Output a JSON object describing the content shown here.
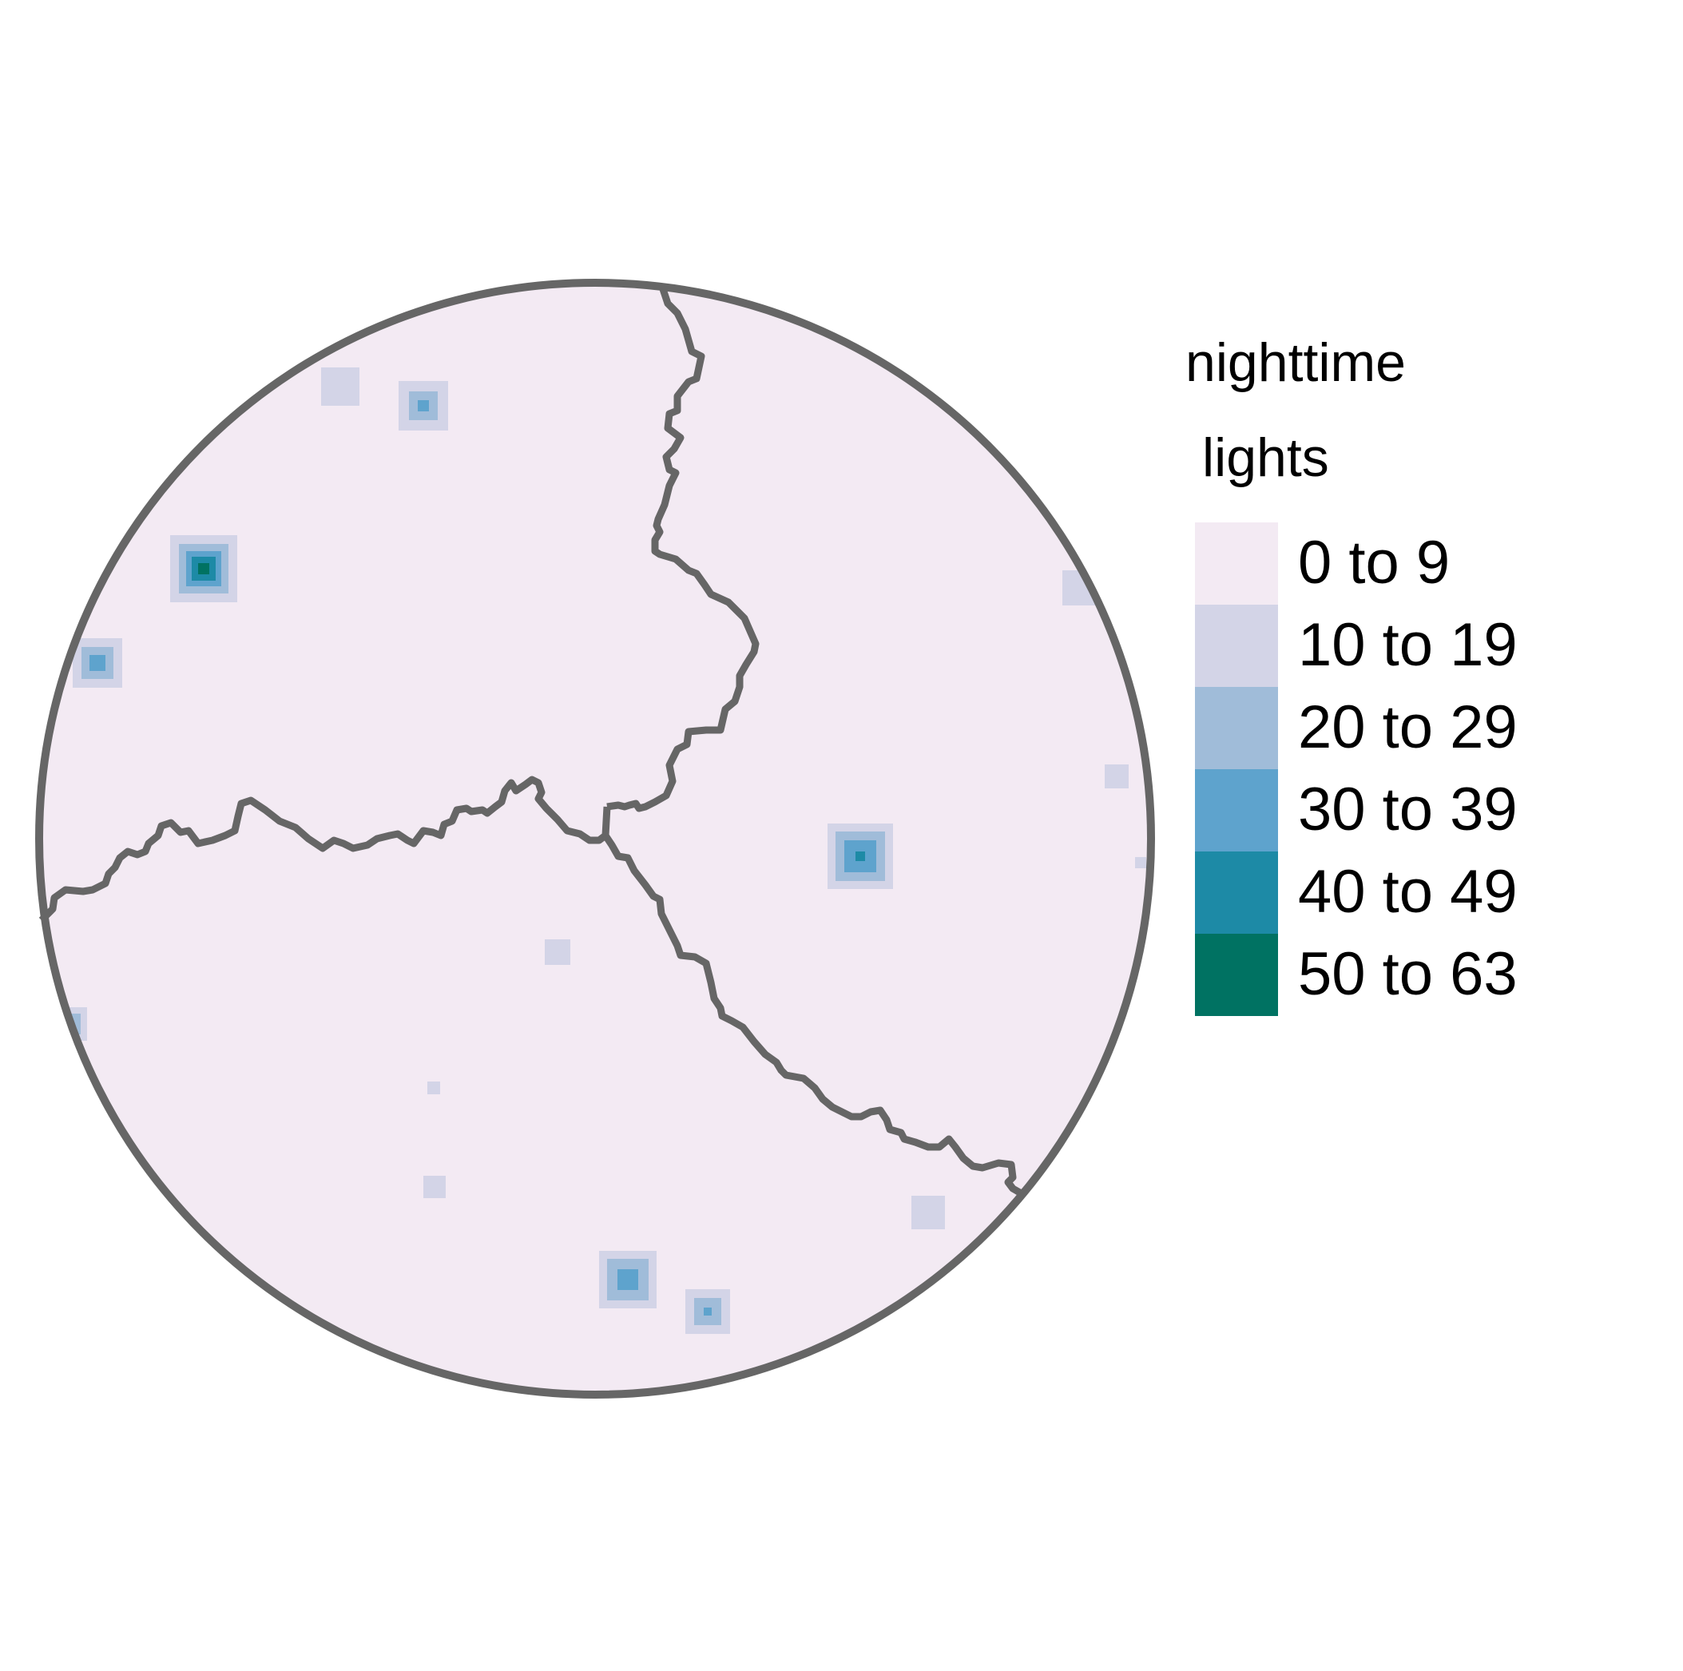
{
  "legend": {
    "title_line1": "nighttime",
    "title_line2": "lights",
    "classes": [
      {
        "label": "0 to 9",
        "color": "#F3EAF3"
      },
      {
        "label": "10 to 19",
        "color": "#D3D4E7"
      },
      {
        "label": "20 to 29",
        "color": "#A0BCD9"
      },
      {
        "label": "30 to 39",
        "color": "#5EA3CD"
      },
      {
        "label": "40 to 49",
        "color": "#1D8AA6"
      },
      {
        "label": "50 to 63",
        "color": "#007262"
      }
    ]
  },
  "style": {
    "border_color": "#666666",
    "background_class_color": "#F3EAF3"
  },
  "light_clusters": [
    {
      "name": "cluster-1",
      "levels": [
        1
      ]
    },
    {
      "name": "cluster-2",
      "levels": [
        1,
        2,
        3
      ]
    },
    {
      "name": "cluster-3",
      "levels": [
        1,
        2,
        3,
        4,
        5
      ]
    },
    {
      "name": "cluster-4",
      "levels": [
        1,
        2,
        3
      ]
    },
    {
      "name": "cluster-5",
      "levels": [
        1
      ]
    },
    {
      "name": "cluster-6",
      "levels": [
        1,
        2,
        3,
        4
      ]
    },
    {
      "name": "cluster-7",
      "levels": [
        1,
        2
      ]
    },
    {
      "name": "cluster-8",
      "levels": [
        1
      ]
    },
    {
      "name": "cluster-9",
      "levels": [
        1
      ]
    },
    {
      "name": "cluster-10",
      "levels": [
        1
      ]
    },
    {
      "name": "cluster-11",
      "levels": [
        1,
        2,
        3
      ]
    },
    {
      "name": "cluster-12",
      "levels": [
        1,
        2,
        3
      ]
    },
    {
      "name": "cluster-13",
      "levels": [
        1
      ]
    },
    {
      "name": "cluster-14",
      "levels": [
        1
      ]
    },
    {
      "name": "cluster-15",
      "levels": [
        1
      ]
    }
  ]
}
